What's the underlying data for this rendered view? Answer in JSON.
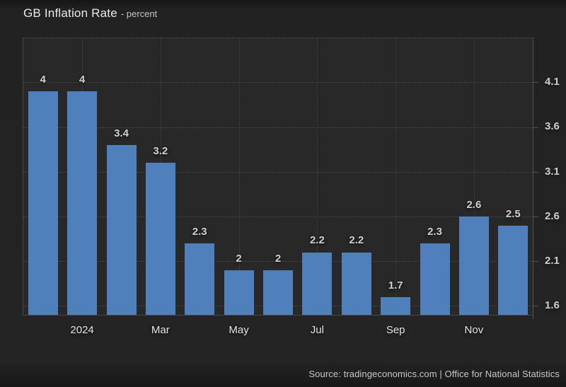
{
  "title": {
    "main": "GB Inflation Rate",
    "suffix": "- percent"
  },
  "source": "Source: tradingeconomics.com | Office for National Statistics",
  "colors": {
    "bar": "#4f80bc",
    "plot_background": "#282828",
    "page_background": "#222222",
    "grid": "#4a4a4a",
    "axis_line": "#525252",
    "value_label_text": "#cecece",
    "axis_label_text": "#e2e2e2"
  },
  "chart_data": {
    "type": "bar",
    "title": "GB Inflation Rate",
    "ylabel": "percent",
    "values": [
      4,
      4,
      3.4,
      3.2,
      2.3,
      2,
      2,
      2.2,
      2.2,
      1.7,
      2.3,
      2.6,
      2.5
    ],
    "bar_labels": [
      "4",
      "4",
      "3.4",
      "3.2",
      "2.3",
      "2",
      "2",
      "2.2",
      "2.2",
      "1.7",
      "2.3",
      "2.6",
      "2.5"
    ],
    "x_ticks": [
      {
        "label": "2024",
        "index": 1
      },
      {
        "label": "Mar",
        "index": 3
      },
      {
        "label": "May",
        "index": 5
      },
      {
        "label": "Jul",
        "index": 7
      },
      {
        "label": "Sep",
        "index": 9
      },
      {
        "label": "Nov",
        "index": 11
      }
    ],
    "y_ticks": [
      "1.6",
      "2.1",
      "2.6",
      "3.1",
      "3.6",
      "4.1"
    ],
    "y_gridlines": [
      1.6,
      2.1,
      2.6,
      3.1,
      3.6,
      4.1,
      4.6
    ],
    "ylim": [
      1.5,
      4.6
    ],
    "grid": "dotted",
    "y_axis_side": "right",
    "legend": "none"
  }
}
